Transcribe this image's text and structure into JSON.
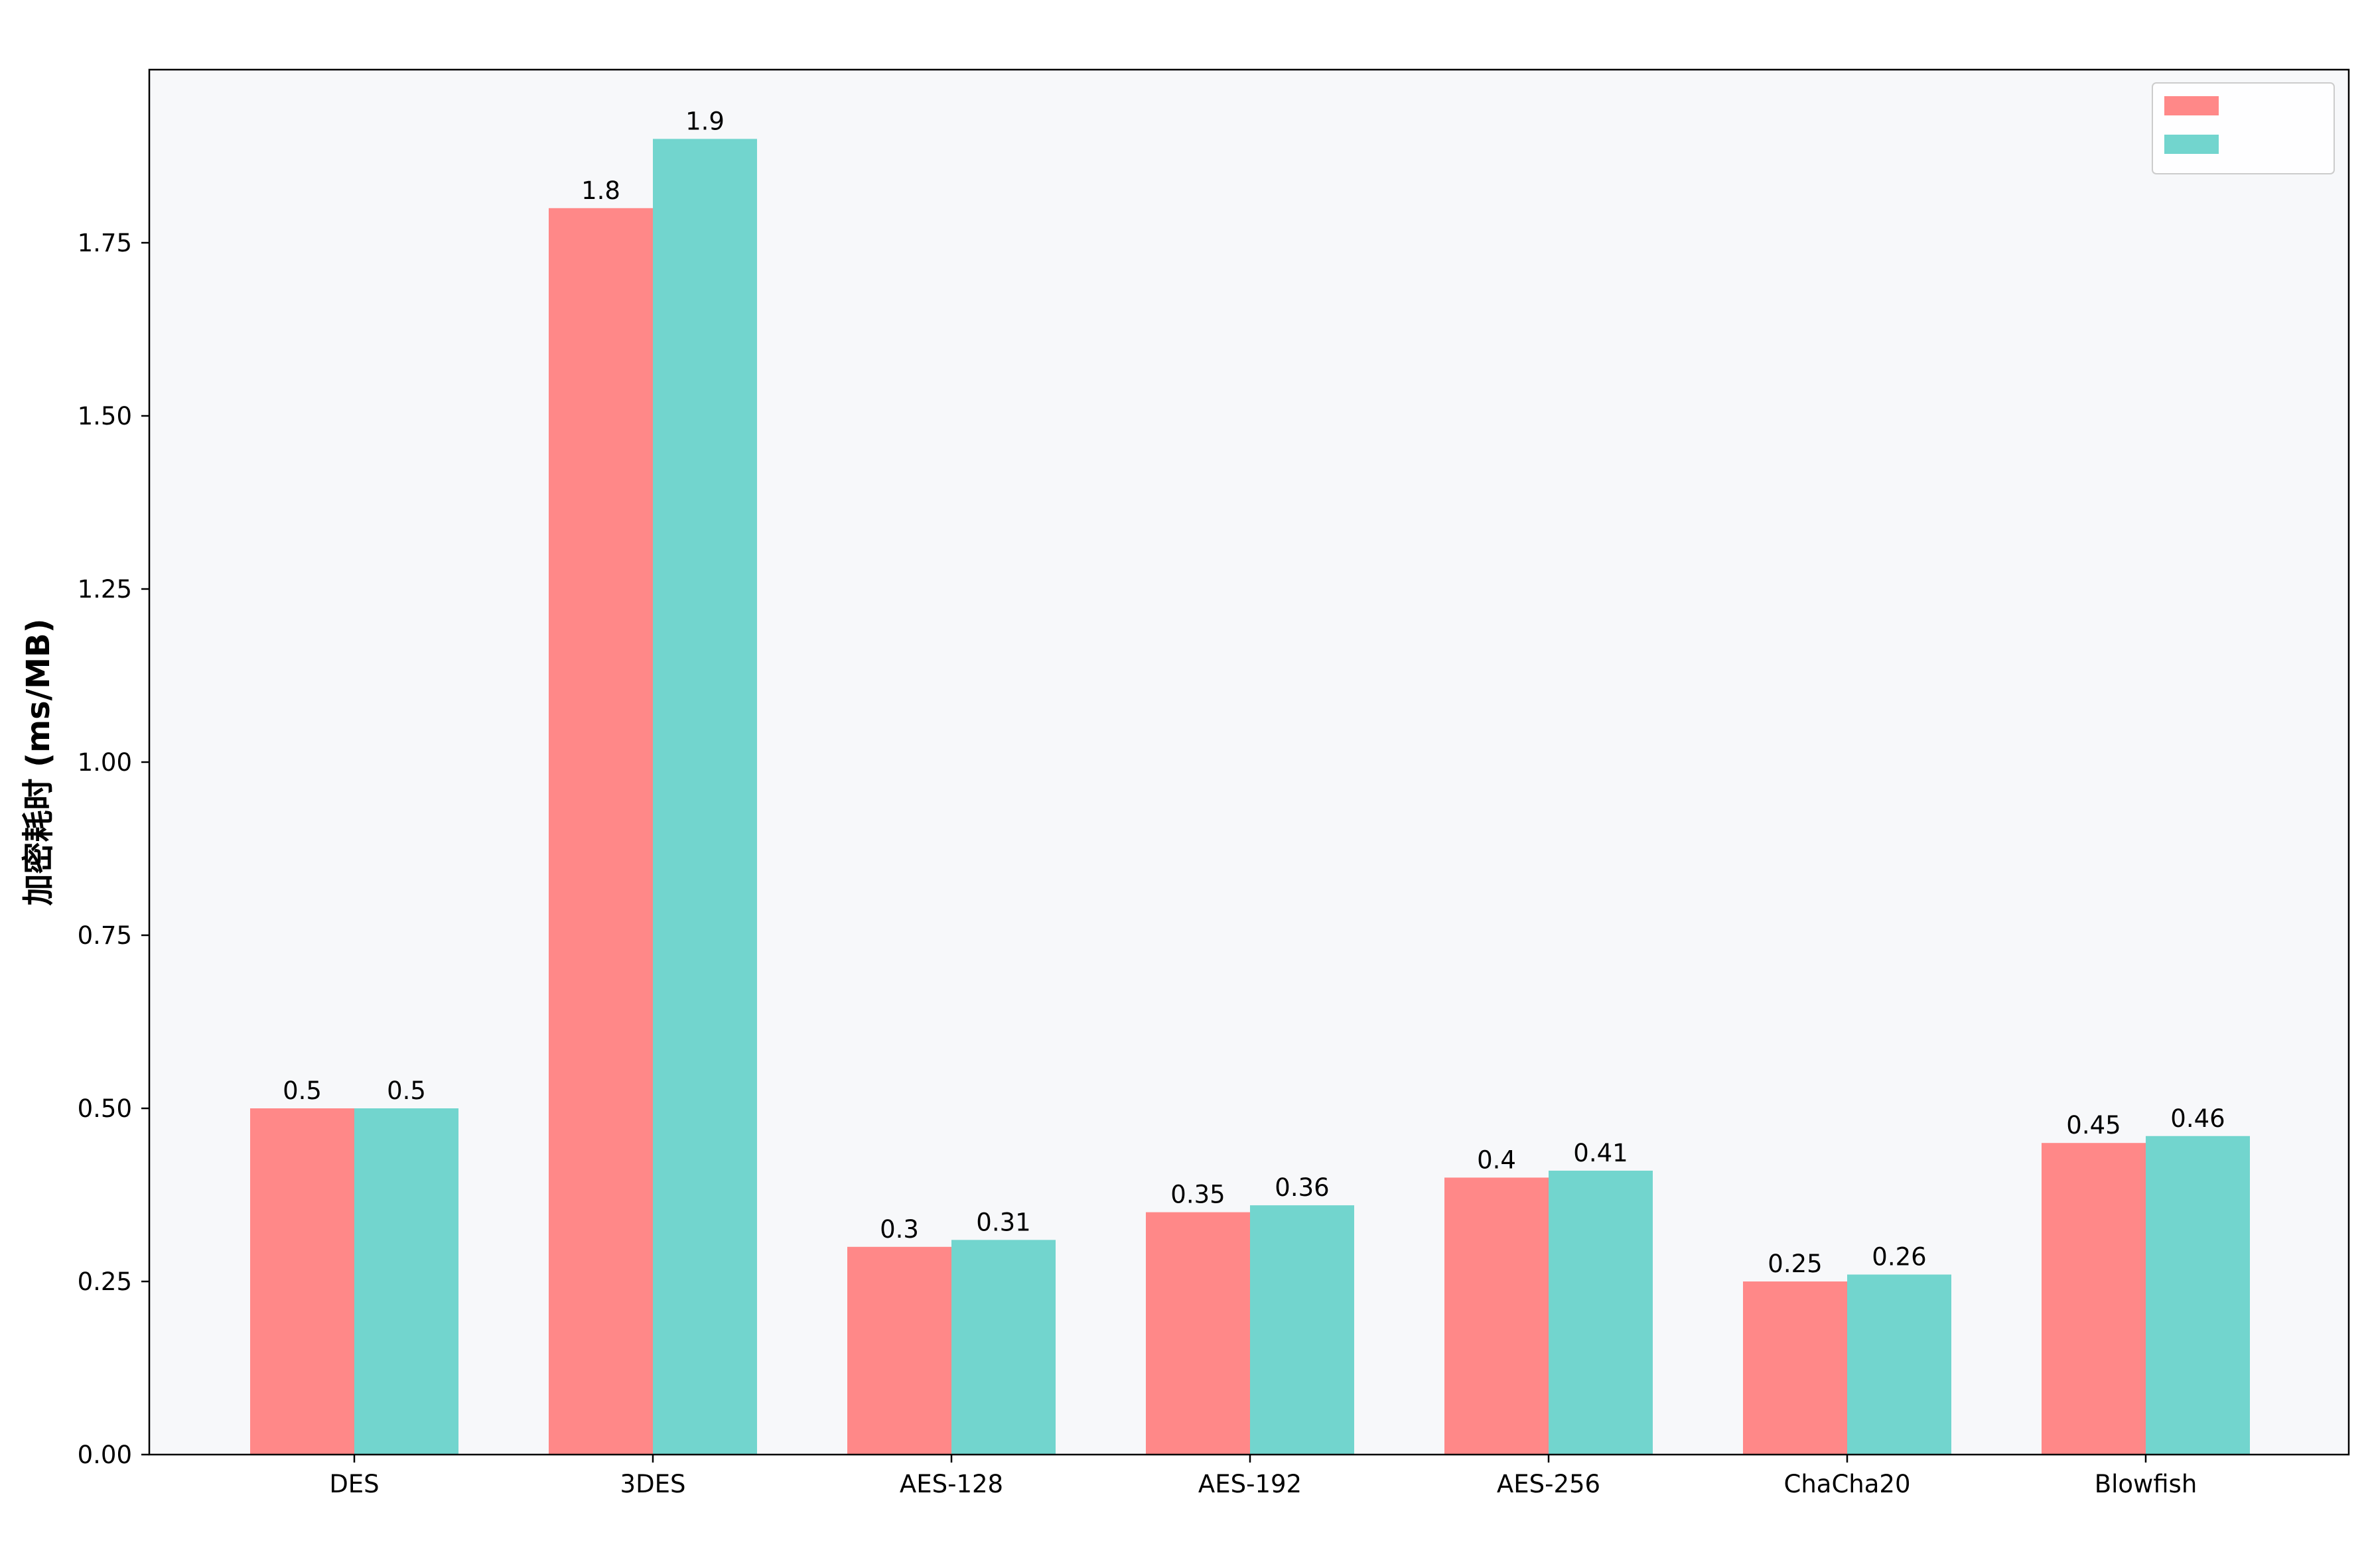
{
  "chart_data": {
    "type": "bar",
    "title": "",
    "xlabel": "",
    "ylabel": "加密耗时 (ms/MB)",
    "categories": [
      "DES",
      "3DES",
      "AES-128",
      "AES-192",
      "AES-256",
      "ChaCha20",
      "Blowfish"
    ],
    "series": [
      {
        "name": "",
        "color": "#ff8888",
        "values": [
          0.5,
          1.8,
          0.3,
          0.35,
          0.4,
          0.25,
          0.45
        ]
      },
      {
        "name": "",
        "color": "#72d5ce",
        "values": [
          0.5,
          1.9,
          0.31,
          0.36,
          0.41,
          0.26,
          0.46
        ]
      }
    ],
    "data_labels": [
      [
        "0.5",
        "1.8",
        "0.3",
        "0.35",
        "0.4",
        "0.25",
        "0.45"
      ],
      [
        "0.5",
        "1.9",
        "0.31",
        "0.36",
        "0.41",
        "0.26",
        "0.46"
      ]
    ],
    "ylim": [
      0,
      2.0
    ],
    "yticks": [
      "0.00",
      "0.25",
      "0.50",
      "0.75",
      "1.00",
      "1.25",
      "1.50",
      "1.75"
    ],
    "ytick_values": [
      0,
      0.25,
      0.5,
      0.75,
      1.0,
      1.25,
      1.5,
      1.75
    ],
    "grid": false,
    "legend_position": "top-right",
    "plot_background": "#f7f8fa"
  }
}
